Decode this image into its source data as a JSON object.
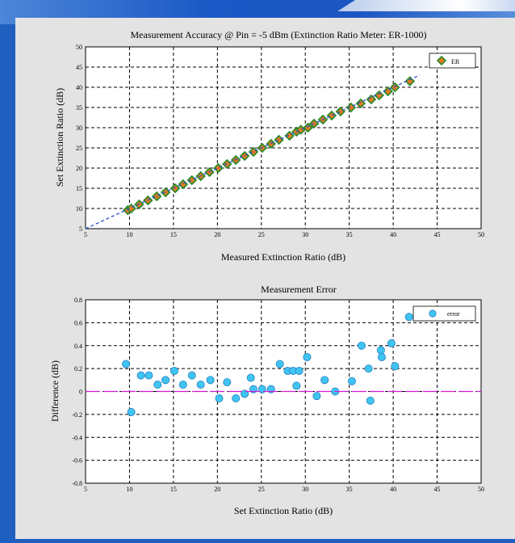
{
  "chart_data": [
    {
      "type": "scatter",
      "title": "Measurement Accuracy @ Pin = -5 dBm (Extinction Ratio Meter: ER-1000)",
      "xlabel": "Measured Extinction Ratio (dB)",
      "ylabel": "Set Extinction Ratio (dB)",
      "xlim": [
        5,
        50
      ],
      "ylim": [
        5,
        50
      ],
      "xticks": [
        "5",
        "10",
        "15",
        "20",
        "25",
        "30",
        "35",
        "40",
        "45",
        "50"
      ],
      "yticks": [
        "5",
        "10",
        "15",
        "20",
        "25",
        "30",
        "35",
        "40",
        "45",
        "50"
      ],
      "grid": true,
      "legend_position": "top-right",
      "series": [
        {
          "name": "ER",
          "color": "#e87a1e",
          "marker": "diamond",
          "x": [
            9.8,
            10.2,
            11.1,
            12.1,
            13.1,
            14.1,
            15.2,
            16.1,
            17.1,
            18.1,
            19.1,
            20.1,
            21.1,
            22.1,
            23.1,
            24.1,
            25.1,
            26.1,
            27.0,
            28.2,
            29.0,
            29.5,
            30.3,
            31.0,
            32.0,
            33.0,
            34.0,
            35.2,
            36.3,
            37.5,
            38.4,
            39.4,
            40.2,
            41.9
          ],
          "y": [
            9.6,
            10.0,
            11.0,
            12.0,
            13.0,
            14.0,
            15.0,
            16.0,
            17.0,
            18.0,
            19.0,
            20.0,
            21.0,
            22.0,
            23.0,
            24.0,
            25.0,
            26.0,
            27.0,
            28.0,
            29.0,
            29.5,
            30.0,
            31.0,
            32.0,
            33.0,
            34.0,
            35.0,
            36.0,
            37.0,
            38.0,
            39.0,
            40.0,
            41.5
          ]
        },
        {
          "name": "",
          "color": "#2a52c9",
          "style": "dashed-line",
          "x": [
            5,
            43
          ],
          "y": [
            5,
            43
          ]
        }
      ]
    },
    {
      "type": "scatter",
      "title": "Measurement Error",
      "xlabel": "Set Extinction Ratio (dB)",
      "ylabel": "Difference (dB)",
      "xlim": [
        5,
        50
      ],
      "ylim": [
        -0.8,
        0.8
      ],
      "xticks": [
        "5",
        "10",
        "15",
        "20",
        "25",
        "30",
        "35",
        "40",
        "45",
        "50"
      ],
      "yticks": [
        "0.8",
        "0.6",
        "0.4",
        "0.2",
        "0",
        "-0.2",
        "-0.4",
        "-0.6",
        "-0.8"
      ],
      "grid": true,
      "legend_position": "top-right",
      "series": [
        {
          "name": "error",
          "color": "#3fc4f2",
          "marker": "circle",
          "x": [
            9.6,
            10.2,
            11.3,
            12.2,
            13.2,
            14.1,
            15.1,
            16.1,
            17.1,
            18.1,
            19.2,
            20.2,
            21.1,
            22.1,
            23.1,
            23.8,
            24.1,
            25.1,
            26.1,
            27.1,
            28.0,
            28.6,
            29.0,
            29.3,
            30.2,
            31.3,
            32.2,
            33.4,
            35.3,
            36.4,
            37.2,
            37.4,
            38.6,
            38.7,
            39.8,
            40.2,
            41.8
          ],
          "y": [
            0.24,
            -0.18,
            0.14,
            0.14,
            0.06,
            0.1,
            0.18,
            0.06,
            0.14,
            0.06,
            0.1,
            -0.06,
            0.08,
            -0.06,
            -0.02,
            0.12,
            0.02,
            0.02,
            0.02,
            0.24,
            0.18,
            0.18,
            0.05,
            0.18,
            0.3,
            -0.04,
            0.1,
            0.0,
            0.09,
            0.4,
            0.2,
            -0.08,
            0.36,
            0.3,
            0.42,
            0.22,
            0.65
          ]
        },
        {
          "name": "",
          "color": "#d21ad8",
          "style": "dashed-line",
          "x": [
            5,
            50
          ],
          "y": [
            0,
            0
          ]
        }
      ]
    }
  ]
}
